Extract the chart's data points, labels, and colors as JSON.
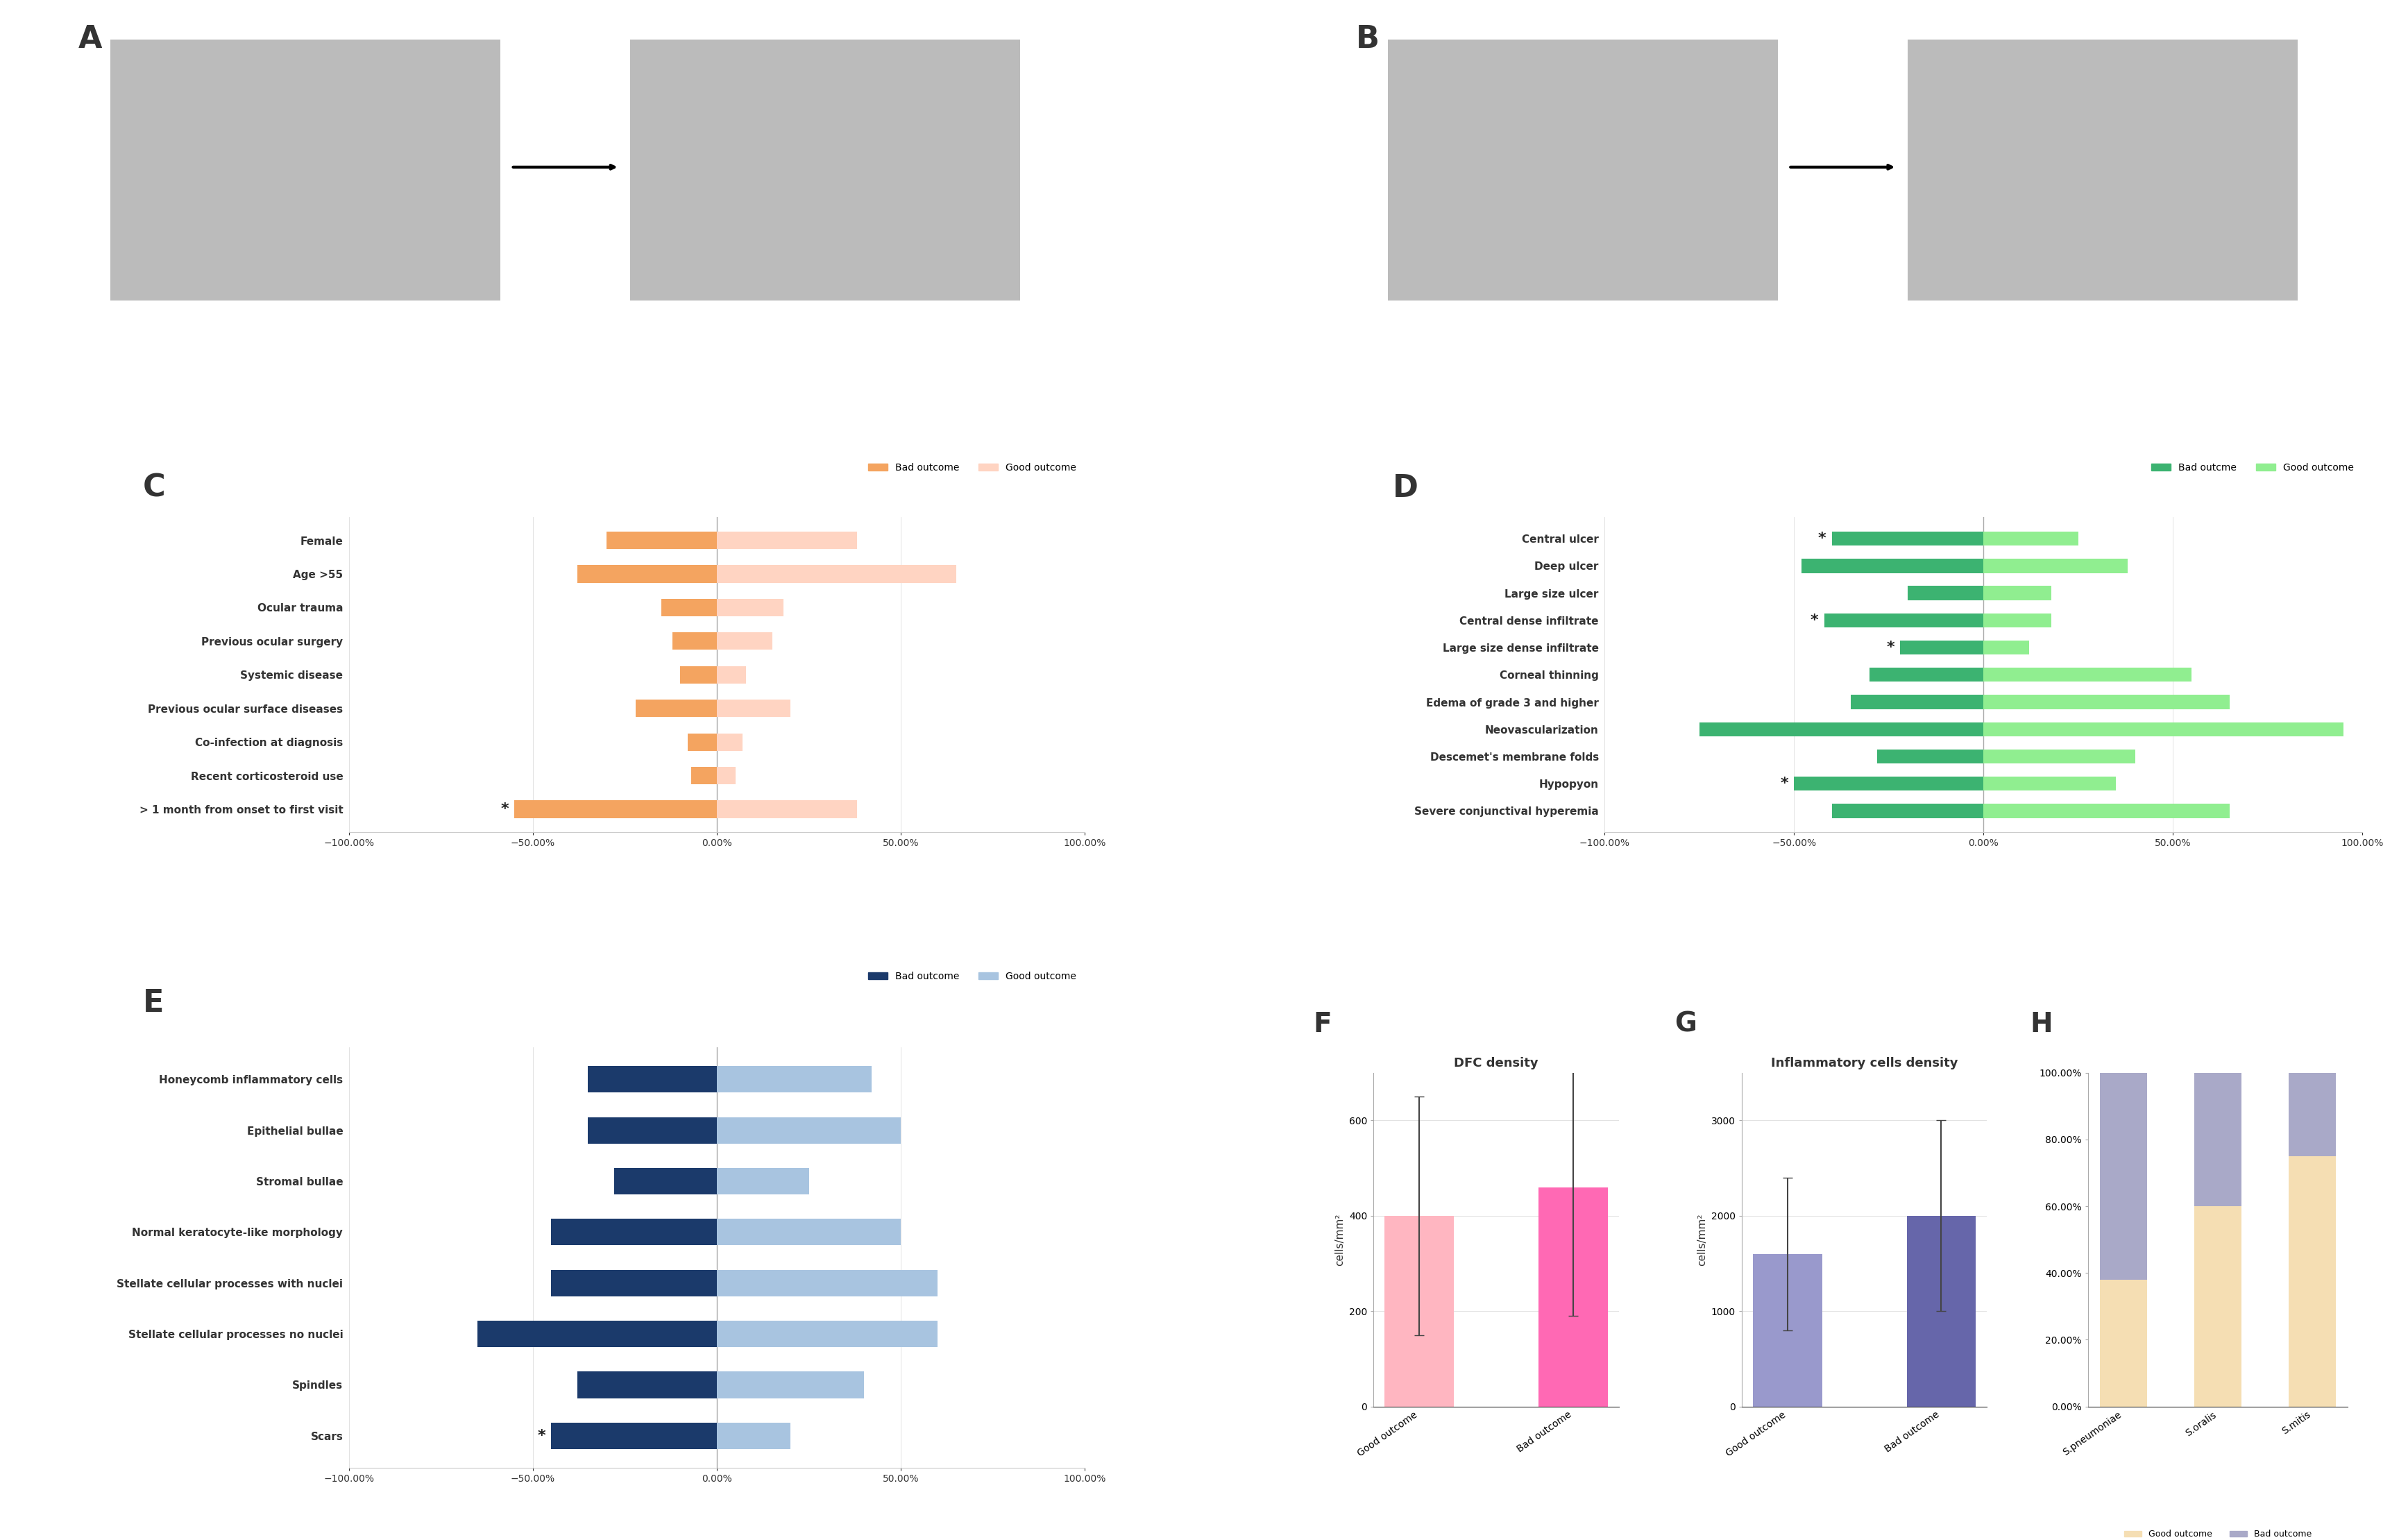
{
  "panel_C": {
    "categories": [
      "Female",
      "Age >55",
      "Ocular trauma",
      "Previous ocular surgery",
      "Systemic disease",
      "Previous ocular surface diseases",
      "Co-infection at diagnosis",
      "Recent corticosteroid use",
      "> 1 month from onset to first visit"
    ],
    "bad_values": [
      -30,
      -38,
      -15,
      -12,
      -10,
      -22,
      -8,
      -7,
      -55
    ],
    "good_values": [
      38,
      65,
      18,
      15,
      8,
      20,
      7,
      5,
      38
    ],
    "starred": [
      false,
      false,
      false,
      false,
      false,
      false,
      false,
      false,
      true
    ],
    "bad_color": "#F4A460",
    "good_color": "#FFD4C2",
    "xlim": [
      -100,
      100
    ],
    "xticks": [
      -100,
      -50,
      0,
      50,
      100
    ],
    "xticklabels": [
      "−100.00%",
      "−50.00%",
      "0.00%",
      "50.00%",
      "100.00%"
    ],
    "legend_bad": "Bad outcome",
    "legend_good": "Good outcome"
  },
  "panel_D": {
    "categories": [
      "Central ulcer",
      "Deep ulcer",
      "Large size ulcer",
      "Central dense infiltrate",
      "Large size dense infiltrate",
      "Corneal thinning",
      "Edema of grade 3 and higher",
      "Neovascularization",
      "Descemet's membrane folds",
      "Hypopyon",
      "Severe conjunctival hyperemia"
    ],
    "bad_values": [
      -40,
      -48,
      -20,
      -42,
      -22,
      -30,
      -35,
      -75,
      -28,
      -50,
      -40
    ],
    "good_values": [
      25,
      38,
      18,
      18,
      12,
      55,
      65,
      95,
      40,
      35,
      65
    ],
    "starred": [
      true,
      false,
      false,
      true,
      true,
      false,
      false,
      false,
      false,
      true,
      false
    ],
    "bad_color": "#3CB371",
    "good_color": "#90EE90",
    "xlim": [
      -100,
      100
    ],
    "xticks": [
      -100,
      -50,
      0,
      50,
      100
    ],
    "xticklabels": [
      "−100.00%",
      "−50.00%",
      "0.00%",
      "50.00%",
      "100.00%"
    ],
    "legend_bad": "Bad outcme",
    "legend_good": "Good outcome"
  },
  "panel_E": {
    "categories": [
      "Honeycomb inflammatory cells",
      "Epithelial bullae",
      "Stromal bullae",
      "Normal keratocyte-like morphology",
      "Stellate cellular processes with nuclei",
      "Stellate cellular processes no nuclei",
      "Spindles",
      "Scars"
    ],
    "bad_values": [
      -35,
      -35,
      -28,
      -45,
      -45,
      -65,
      -38,
      -45
    ],
    "good_values": [
      42,
      50,
      25,
      50,
      60,
      60,
      40,
      20
    ],
    "starred": [
      false,
      false,
      false,
      false,
      false,
      false,
      false,
      true
    ],
    "bad_color": "#1B3A6B",
    "good_color": "#A8C4E0",
    "xlim": [
      -100,
      100
    ],
    "xticks": [
      -100,
      -50,
      0,
      50,
      100
    ],
    "xticklabels": [
      "−100.00%",
      "−50.00%",
      "0.00%",
      "50.00%",
      "100.00%"
    ],
    "legend_bad": "Bad outcome",
    "legend_good": "Good outcome"
  },
  "panel_F": {
    "categories": [
      "Good outcome",
      "Bad outcome"
    ],
    "values": [
      400,
      460
    ],
    "errors": [
      250,
      270
    ],
    "colors": [
      "#FFB6C1",
      "#FF69B4"
    ],
    "ylabel": "cells/mm²",
    "title": "DFC density",
    "ylim": [
      0,
      700
    ],
    "yticks": [
      0,
      200,
      400,
      600
    ]
  },
  "panel_G": {
    "categories": [
      "Good outcome",
      "Bad outcome"
    ],
    "values": [
      1600,
      2000
    ],
    "errors": [
      800,
      1000
    ],
    "colors": [
      "#9999CC",
      "#6666AA"
    ],
    "ylabel": "cells/mm²",
    "title": "Inflammatory cells density",
    "ylim": [
      0,
      3500
    ],
    "yticks": [
      0,
      1000,
      2000,
      3000
    ]
  },
  "panel_H": {
    "categories": [
      "S.pneumoniae",
      "S.oralis",
      "S.mitis"
    ],
    "good_values": [
      0.38,
      0.6,
      0.75
    ],
    "bad_values": [
      0.62,
      0.4,
      0.25
    ],
    "good_color": "#F5DEB3",
    "bad_color": "#A9A9C8",
    "legend_good": "Good outcome",
    "legend_bad": "Bad outcome",
    "yticks": [
      0.0,
      0.2,
      0.4,
      0.6,
      0.8,
      1.0
    ],
    "yticklabels": [
      "0.00%",
      "20.00%",
      "40.00%",
      "60.00%",
      "80.00%",
      "100.00%"
    ]
  },
  "bg_color": "#FFFFFF"
}
